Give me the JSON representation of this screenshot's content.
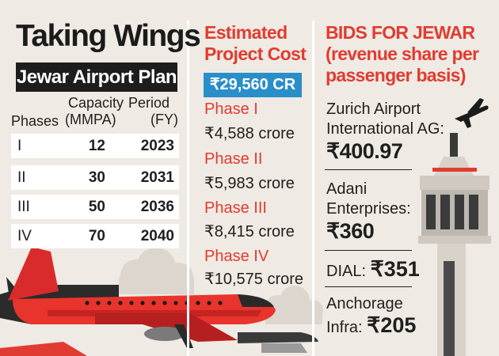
{
  "left": {
    "title": "Taking Wings",
    "subtitle": "Jewar Airport Plan",
    "headers": {
      "phases": "Phases",
      "capacity": "Capacity",
      "capacity_unit": "(MMPA)",
      "period": "Period",
      "period_unit": "(FY)"
    },
    "rows": [
      {
        "phase": "I",
        "capacity": "12",
        "period": "2023"
      },
      {
        "phase": "II",
        "capacity": "30",
        "period": "2031"
      },
      {
        "phase": "III",
        "capacity": "50",
        "period": "2036"
      },
      {
        "phase": "IV",
        "capacity": "70",
        "period": "2040"
      }
    ]
  },
  "middle": {
    "heading_line1": "Estimated",
    "heading_line2": "Project Cost",
    "total": "₹29,560 CR",
    "phases": [
      {
        "label": "Phase I",
        "cost": "₹4,588 crore"
      },
      {
        "label": "Phase II",
        "cost": "₹5,983 crore"
      },
      {
        "label": "Phase III",
        "cost": "₹8,415 crore"
      },
      {
        "label": "Phase IV",
        "cost": "₹10,575 crore"
      }
    ]
  },
  "right": {
    "heading_line1": "BIDS FOR JEWAR",
    "heading_line2": "(revenue share per",
    "heading_line3": "passenger basis)",
    "bids": [
      {
        "line1": "Zurich Airport",
        "line2": "International AG:",
        "amount": "₹400.97"
      },
      {
        "line1": "Adani",
        "line2": "Enterprises:",
        "amount": "₹360"
      },
      {
        "line1": "DIAL:",
        "amount": "₹351"
      },
      {
        "line1": "Anchorage",
        "line2": "Infra:",
        "amount": "₹205"
      }
    ]
  },
  "colors": {
    "accent_red": "#e03c31",
    "accent_blue": "#2a8fc9",
    "background": "#efeae3",
    "dark": "#1d1d1d"
  },
  "illustrations": [
    "airplane-illustration",
    "control-tower-illustration",
    "small-plane-icon",
    "cloud-illustration"
  ]
}
